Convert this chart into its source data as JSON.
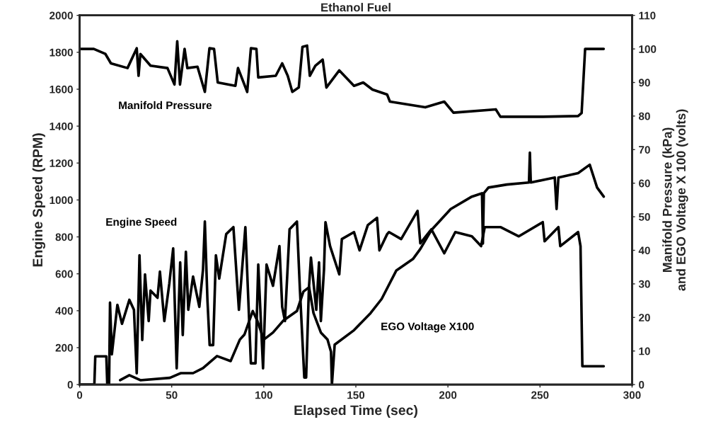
{
  "chart_data": {
    "type": "line",
    "title": "Ethanol Fuel",
    "xlabel": "Elapsed Time (sec)",
    "ylabel": "Engine Speed (RPM)",
    "y2label": "Manifold Pressure (kPa)\nand EGO Voltage X 100 (volts)",
    "xlim": [
      0,
      300
    ],
    "xticks": [
      0,
      50,
      100,
      150,
      200,
      250,
      300
    ],
    "ylim": [
      0,
      2000
    ],
    "yticks": [
      0,
      200,
      400,
      600,
      800,
      1000,
      1200,
      1400,
      1600,
      1800,
      2000
    ],
    "y2lim": [
      0,
      110
    ],
    "y2ticks": [
      0,
      10,
      20,
      30,
      40,
      50,
      60,
      70,
      80,
      90,
      100,
      110
    ],
    "grid": false,
    "legend": false,
    "marker": "none",
    "line_style": "solid",
    "series": [
      {
        "name": "Manifold Pressure",
        "color": "#000000",
        "axis": "y2",
        "x": [
          0,
          7.7,
          14,
          17,
          26,
          31,
          32,
          33,
          38.5,
          47.7,
          51.5,
          53,
          54.5,
          57,
          58.5,
          64,
          68,
          70.5,
          73,
          75,
          84.6,
          86,
          91,
          93,
          96,
          97,
          106.5,
          110,
          113,
          115.5,
          119,
          121,
          123.5,
          125,
          128,
          132,
          134,
          141,
          149,
          154,
          159,
          167,
          168.5,
          187.7,
          198,
          203,
          226,
          228.5,
          251.5,
          270.7,
          272.6,
          274.5,
          284.6
        ],
        "values": [
          100,
          100,
          98.5,
          95.7,
          94.3,
          100.2,
          92,
          98.5,
          95,
          94.3,
          89.4,
          102.3,
          89.4,
          100,
          94.3,
          94.7,
          87.2,
          100.2,
          100,
          90,
          89,
          94.3,
          87.2,
          100.2,
          100,
          91.5,
          92,
          95.7,
          92,
          87.2,
          88.5,
          100.6,
          101,
          92,
          95,
          96.8,
          88.5,
          93.6,
          89,
          90,
          87.9,
          86.4,
          84.3,
          82.6,
          84.3,
          81,
          82,
          79.8,
          79.8,
          80,
          80.9,
          100,
          100
        ]
      },
      {
        "name": "Engine Speed",
        "color": "#000000",
        "axis": "y",
        "x": [
          0,
          8,
          8.5,
          14.5,
          15,
          16,
          16.5,
          17.5,
          20.5,
          23,
          27,
          29.5,
          31,
          32.5,
          34,
          35.5,
          37.5,
          38.5,
          42.3,
          43.6,
          46,
          48.7,
          50.8,
          52.7,
          54.6,
          56,
          57.7,
          59,
          61.6,
          65,
          67,
          68,
          69.4,
          70.6,
          72.5,
          74,
          75.8,
          79.6,
          83.5,
          86.5,
          90,
          93,
          95.5,
          97,
          99.6,
          101.5,
          105,
          108.5,
          110,
          111.5,
          114,
          118,
          119.6,
          122,
          123,
          124.5,
          125.6,
          128.5,
          130,
          131,
          132.7,
          133.5,
          136,
          141,
          142.4,
          149,
          152,
          156.5,
          161.5,
          162.8,
          167,
          168,
          174.6,
          183.5,
          185,
          191,
          198,
          204,
          213,
          218,
          220,
          228.5,
          238.5,
          251.5,
          252.5,
          260,
          261,
          270.7,
          272,
          273,
          284.6
        ],
        "values": [
          0,
          0,
          153,
          153,
          0,
          0,
          444,
          164,
          432,
          329,
          459,
          405,
          61,
          700,
          241,
          597,
          344,
          509,
          470,
          612,
          344,
          547,
          738,
          88,
          662,
          268,
          719,
          405,
          585,
          421,
          623,
          883,
          459,
          214,
          214,
          700,
          574,
          815,
          853,
          405,
          853,
          115,
          115,
          650,
          88,
          650,
          535,
          750,
          421,
          344,
          841,
          883,
          520,
          38,
          38,
          520,
          688,
          405,
          662,
          344,
          623,
          880,
          750,
          597,
          788,
          826,
          727,
          864,
          903,
          727,
          815,
          826,
          788,
          941,
          765,
          841,
          711,
          826,
          803,
          750,
          853,
          853,
          803,
          880,
          776,
          853,
          750,
          826,
          750,
          99,
          99
        ]
      },
      {
        "name": "EGO Voltage X100",
        "color": "#000000",
        "axis": "y2",
        "x": [
          22,
          27,
          33,
          49,
          55,
          61.6,
          67,
          74.6,
          82,
          87,
          89.5,
          94,
          96.5,
          100,
          105,
          110.5,
          118,
          121.5,
          124.6,
          127,
          131,
          134.6,
          136.5,
          137,
          138.5,
          149,
          158,
          164,
          172,
          181,
          185,
          191,
          201.5,
          213,
          218.5,
          219,
          219.5,
          222,
          232,
          244,
          244.5,
          245,
          258,
          259,
          260,
          270.7,
          277,
          281,
          284.6
        ],
        "values": [
          1.3,
          2.8,
          1.3,
          2,
          3.4,
          3.4,
          4.9,
          8.5,
          7,
          13.4,
          14.9,
          21.9,
          19,
          13.4,
          15.5,
          19,
          21.9,
          27.7,
          29,
          21.3,
          15.5,
          13.4,
          9.8,
          0,
          11.9,
          16.2,
          21.3,
          25.5,
          34,
          37.4,
          40.4,
          46,
          52.3,
          56,
          57,
          42,
          57,
          58.7,
          59.6,
          60.2,
          69.1,
          60.2,
          61.7,
          52.3,
          61.7,
          63,
          65.5,
          58.7,
          56
        ]
      }
    ]
  }
}
